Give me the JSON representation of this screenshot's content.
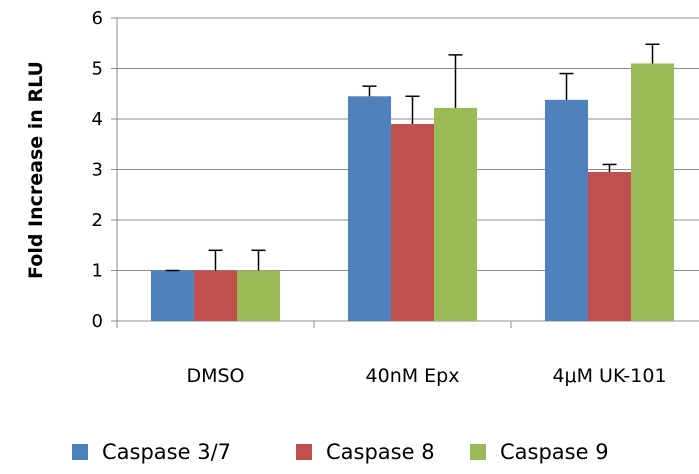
{
  "chart_data": {
    "type": "bar",
    "title": "",
    "xlabel": "",
    "ylabel": "Fold Increase in RLU",
    "ylim": [
      0,
      6
    ],
    "yticks": [
      "0",
      "1",
      "2",
      "3",
      "4",
      "5",
      "6"
    ],
    "grid": true,
    "legend_position": "bottom",
    "categories": [
      "DMSO",
      "40nM Epx",
      "4μM UK-101"
    ],
    "series": [
      {
        "name": "Caspase 3/7",
        "color": "#4F81BD",
        "values": [
          1.0,
          4.45,
          4.38
        ],
        "errors": [
          0.0,
          0.2,
          0.52
        ]
      },
      {
        "name": "Caspase 8",
        "color": "#C0504D",
        "values": [
          1.0,
          3.9,
          2.95
        ],
        "errors": [
          0.4,
          0.55,
          0.15
        ]
      },
      {
        "name": "Caspase 9",
        "color": "#9BBB59",
        "values": [
          1.0,
          4.22,
          5.1
        ],
        "errors": [
          0.4,
          1.05,
          0.38
        ]
      }
    ]
  }
}
